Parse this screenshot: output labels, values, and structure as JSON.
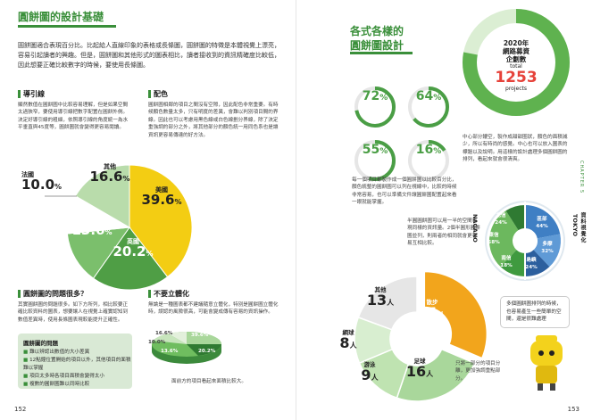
{
  "left": {
    "title": "圓餅圖的設計基礎",
    "intro": "圓餅圖適合表現百分比。比起給人直線印象的表格或長條圖，圓餅圖的特徵是本體視覺上漂亮，容易引起讀者的興趣。但是，圓餅圖和其他形式的圖表相比，讀者接收到的資訊精確度比較低，因此想要正確比較數字的時候，要使用長條圖。",
    "guide_heading": "導引線",
    "guide_text": "顯然數值在圓餅圖中比較容易理解，但是如果空間太過狹窄，要使用導引線把數字配置在圓餅外側。決定好導引線的粗細，依照導引線的角度統一為水平垂直與45度等，圓餅圖就會變得更容易閱讀。",
    "color_heading": "配色",
    "color_text": "圓餅圖相鄰的項目之間沒有空隙，因此配色非常重要。有時候顏色數量太多，只有明度的差異，會難以判別項目間的界線。因此也可以考慮用黑色線或白色線劃分界線，除了決定重強調的部分之外，將其他部分的顏色統一用同色系也是讓資訊更容易傳達的好方法。",
    "pie_labels": [
      {
        "name": "美國",
        "value": "39.6",
        "unit": "%"
      },
      {
        "name": "英國",
        "value": "20.2",
        "unit": "%"
      },
      {
        "name": "加拿大",
        "value": "13.6",
        "unit": "%"
      },
      {
        "name": "法國",
        "value": "10.0",
        "unit": "%"
      },
      {
        "name": "其他",
        "value": "16.6",
        "unit": "%"
      }
    ],
    "problems_heading": "圓餅圖的問題很多？",
    "problems_text": "其實圓餅圖的問題很多。如下方所列，相比較要正確比較資料的圖表，想要讓人在視覺上確實認知到數值差異時，使用長條圖表現較能提升正確性。",
    "box_title": "圓餅圖的問題",
    "box_items": [
      "難以辨認出數值的大小差異",
      "12點鐘位置開始的項目以外，其他項目的面積難以掌握",
      "項目太多時各項目面積會變得太小",
      "複數的圓餅圖難以同時比較"
    ],
    "no3d_heading": "不要立體化",
    "no3d_text": "無論是一種圖表都不建議隨意立體化，特別是圓餅圖立體化時，誤認的風險很高，可能會變成傳有容易的資訊操作。",
    "pie3d_labels": [
      "16.6%",
      "39.6%",
      "10.0%",
      "13.6%",
      "20.2%"
    ],
    "pie3d_caption": "面前方的項目看起來面積比較大。",
    "page_number": "152"
  },
  "right": {
    "title_line1": "各式各樣的",
    "title_line2": "圓餅圖設計",
    "rings": [
      {
        "value": "72",
        "unit": "%",
        "fraction": 0.72
      },
      {
        "value": "64",
        "unit": "%",
        "fraction": 0.64
      },
      {
        "value": "55",
        "unit": "%",
        "fraction": 0.55
      },
      {
        "value": "16",
        "unit": "%",
        "fraction": 0.16
      }
    ],
    "big_ring": {
      "line1": "2020年",
      "line2": "網路募資",
      "line3": "企劃數",
      "total_label": "total",
      "total_value": "1253",
      "total_unit": "projects",
      "fraction": 0.78
    },
    "center_text": "中心部分鏤空，製作成甜甜圈狀，顏色的面積減少，所以有時尚的感覺。中心也可以放入圖表的標題以及說明。用這樣的設計處理多個圓餅圖的排列，看起來就會很清爽。",
    "multi_text": "每一個項目都製作成一個圓餅圖以比較百分比，顏色統整的圓餅圖可以列在視線中，比較的時候非常容易，也可以準備文件讓圓餅圖配置起來看一眼就能掌握。",
    "semi_text": "半圓圓餅圖可以用一半的空間表現同樣的資訊量。2個半圓形圓餅圖並列，則兩者的相同就會更容易互相比較。",
    "nagano": {
      "label": "NAGANO",
      "slices": [
        {
          "name": "北信",
          "value": "24%"
        },
        {
          "name": "東信",
          "value": "58%"
        },
        {
          "name": "南信",
          "value": "18%"
        }
      ]
    },
    "tokyo": {
      "label": "TOKYO",
      "slices": [
        {
          "name": "區部",
          "value": "44%"
        },
        {
          "name": "多摩",
          "value": "32%"
        },
        {
          "name": "島嶼",
          "value": "24%"
        }
      ]
    },
    "donut_labels": [
      {
        "name": "散步",
        "value": "21",
        "unit": "人"
      },
      {
        "name": "足球",
        "value": "16",
        "unit": "人"
      },
      {
        "name": "游泳",
        "value": "9",
        "unit": "人"
      },
      {
        "name": "網球",
        "value": "8",
        "unit": "人"
      },
      {
        "name": "其他",
        "value": "13",
        "unit": "人"
      }
    ],
    "donut_note": "只將一部分的項目分離，更加強調重點部分。",
    "bubble_text": "多個圓餅圖排列的時候，也容易產生一些簡單的空間，還是很難處理",
    "side_en": "CHAPTER 5",
    "side_ch": "資料視覺化",
    "page_number": "153"
  },
  "chart_data": [
    {
      "type": "pie",
      "title": "",
      "categories": [
        "美國",
        "英國",
        "加拿大",
        "法國",
        "其他"
      ],
      "values": [
        39.6,
        20.2,
        13.6,
        10.0,
        16.6
      ]
    },
    {
      "type": "pie",
      "title": "",
      "categories": [
        "散步",
        "足球",
        "游泳",
        "網球",
        "其他"
      ],
      "values": [
        21,
        16,
        9,
        8,
        13
      ]
    }
  ]
}
